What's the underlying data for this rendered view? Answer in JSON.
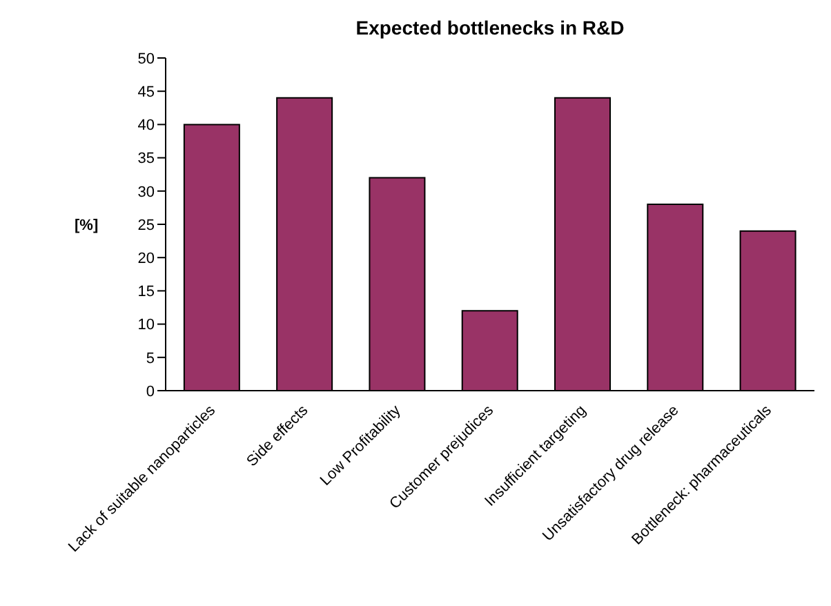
{
  "chart_data": {
    "type": "bar",
    "title": "Expected bottlenecks in R&D",
    "ylabel": "[%]",
    "categories": [
      "Lack of suitable nanoparticles",
      "Side effects",
      "Low Profitability",
      "Customer prejudices",
      "Insufficient targeting",
      "Unsatisfactory drug release",
      "Bottleneck: pharmaceuticals"
    ],
    "values": [
      40,
      44,
      32,
      12,
      44,
      28,
      24
    ],
    "color": "#993366",
    "ylim": [
      0,
      50
    ],
    "yticks": [
      0,
      5,
      10,
      15,
      20,
      25,
      30,
      35,
      40,
      45,
      50
    ],
    "grid": false,
    "legend": false
  }
}
